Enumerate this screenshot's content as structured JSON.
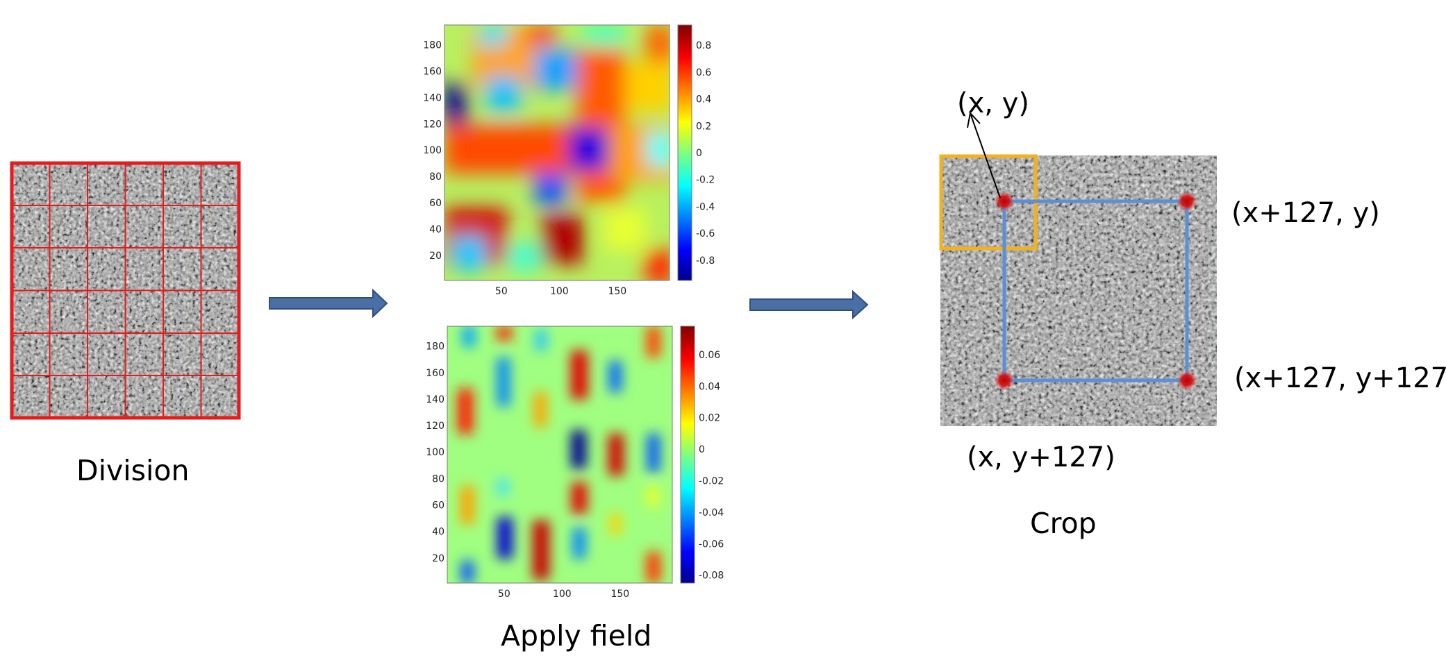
{
  "division": {
    "label": "Division"
  },
  "apply_field": {
    "label": "Apply field"
  },
  "crop": {
    "label": "Crop",
    "corners": {
      "top_left": "(x, y)",
      "top_right": "(x+127, y)",
      "bottom_right": "(x+127, y+127)",
      "bottom_left": "(x, y+127)"
    }
  },
  "colors": {
    "grid_red": "#e81b1b",
    "arrow_blue": "#4a6fa5",
    "crop_blue": "#5b8fd6",
    "patch_orange": "#f2b21c",
    "corner_red": "#c00000"
  },
  "chart_data": [
    {
      "type": "heatmap",
      "x_ticks": [
        50,
        100,
        150
      ],
      "y_ticks": [
        20,
        40,
        60,
        80,
        100,
        120,
        140,
        160,
        180
      ],
      "xlim": [
        1,
        195
      ],
      "ylim": [
        1,
        195
      ],
      "colorbar_ticks": [
        "0.8",
        "0.6",
        "0.4",
        "0.2",
        "0",
        "-0.2",
        "-0.4",
        "-0.6",
        "-0.8"
      ],
      "clim": [
        -0.95,
        0.95
      ],
      "colormap": "jet"
    },
    {
      "type": "heatmap",
      "x_ticks": [
        50,
        100,
        150
      ],
      "y_ticks": [
        20,
        40,
        60,
        80,
        100,
        120,
        140,
        160,
        180
      ],
      "xlim": [
        1,
        195
      ],
      "ylim": [
        1,
        195
      ],
      "colorbar_ticks": [
        "0.06",
        "0.04",
        "0.02",
        "0",
        "-0.02",
        "-0.04",
        "-0.06",
        "-0.08"
      ],
      "clim": [
        -0.085,
        0.078
      ],
      "colormap": "jet"
    }
  ]
}
